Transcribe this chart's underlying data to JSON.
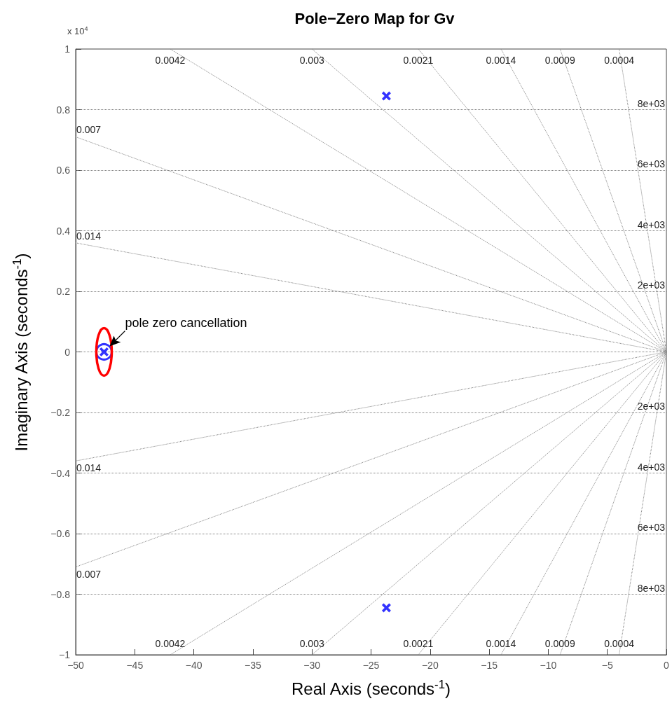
{
  "chart_data": {
    "type": "scatter",
    "title": "Pole−Zero Map for Gv",
    "xlabel": "Real Axis (seconds$^{-1}$)",
    "ylabel": "Imaginary Axis (seconds$^{-1}$)",
    "xlim": [
      -50,
      0
    ],
    "xticks": [
      -50,
      -45,
      -40,
      -35,
      -30,
      -25,
      -20,
      -15,
      -10,
      -5,
      0
    ],
    "ylim": [
      -1,
      1
    ],
    "yticks": [
      -1,
      -0.8,
      -0.6,
      -0.4,
      -0.2,
      0,
      0.2,
      0.4,
      0.6,
      0.8,
      1
    ],
    "grid": false,
    "legend": false,
    "series": [
      {
        "type": "line",
        "name": "0.0042",
        "color": "#808080",
        "line_style": "dotted",
        "marker": "none",
        "x": [
          -42,
          0,
          -42
        ],
        "values": [
          1,
          0,
          -1
        ]
      },
      {
        "type": "line",
        "name": "0.003",
        "color": "#808080",
        "line_style": "dotted",
        "marker": "none",
        "x": [
          -30,
          0,
          -30
        ],
        "values": [
          1,
          0,
          -1
        ]
      },
      {
        "type": "line",
        "name": "0.0021",
        "color": "#808080",
        "line_style": "dotted",
        "marker": "none",
        "x": [
          -21,
          0,
          -21
        ],
        "values": [
          1,
          0,
          -1
        ]
      },
      {
        "type": "line",
        "name": "0.0014",
        "color": "#808080",
        "line_style": "dotted",
        "marker": "none",
        "x": [
          -14,
          0,
          -14
        ],
        "values": [
          1,
          0,
          -1
        ]
      },
      {
        "type": "line",
        "name": "0.0009",
        "color": "#808080",
        "line_style": "dotted",
        "marker": "none",
        "x": [
          -9,
          0,
          -9
        ],
        "values": [
          1,
          0,
          -1
        ]
      },
      {
        "type": "line",
        "name": "0.0004",
        "color": "#808080",
        "line_style": "dotted",
        "marker": "none",
        "x": [
          -4,
          0,
          -4
        ],
        "values": [
          1,
          0,
          -1
        ]
      },
      {
        "type": "line",
        "name": "0.007",
        "color": "#808080",
        "line_style": "dotted",
        "marker": "none",
        "x": [
          -50,
          0,
          -50
        ],
        "values": [
          0.71,
          0,
          -0.71
        ]
      },
      {
        "type": "line",
        "name": "0.014",
        "color": "#808080",
        "line_style": "dotted",
        "marker": "none",
        "x": [
          -50,
          0,
          -50
        ],
        "values": [
          0.36,
          0,
          -0.36
        ]
      },
      {
        "marker": "circle",
        "color": "#0000ff",
        "x": [
          -47.6
        ],
        "values": [
          0
        ]
      },
      {
        "marker": "cross",
        "color": "#0000ff",
        "x": [
          -23.7,
          -23.7,
          -47.6
        ],
        "values": [
          0.845,
          -0.845,
          0
        ]
      }
    ],
    "ref_lines": [
      {
        "axis": "y",
        "value": 0.8,
        "label": "8e+03",
        "line_style": "dotted",
        "color": "#808080"
      },
      {
        "axis": "y",
        "value": 0.6,
        "label": "6e+03",
        "line_style": "dotted",
        "color": "#808080"
      },
      {
        "axis": "y",
        "value": 0.4,
        "label": "4e+03",
        "line_style": "dotted",
        "color": "#808080"
      },
      {
        "axis": "y",
        "value": 0.2,
        "label": "2e+03",
        "line_style": "dotted",
        "color": "#808080"
      },
      {
        "axis": "y",
        "value": 0,
        "line_style": "dotted",
        "color": "#808080"
      },
      {
        "axis": "y",
        "value": -0.2,
        "label": "2e+03",
        "line_style": "dotted",
        "color": "#808080"
      },
      {
        "axis": "y",
        "value": -0.4,
        "label": "4e+03",
        "line_style": "dotted",
        "color": "#808080"
      },
      {
        "axis": "y",
        "value": -0.6,
        "label": "6e+03",
        "line_style": "dotted",
        "color": "#808080"
      },
      {
        "axis": "y",
        "value": -0.8,
        "label": "8e+03",
        "line_style": "dotted",
        "color": "#808080"
      }
    ],
    "annotations": [
      "x 10$^{4}$",
      {
        "text": "pole zero cancellation",
        "x": -47.6,
        "y": 0
      }
    ]
  }
}
